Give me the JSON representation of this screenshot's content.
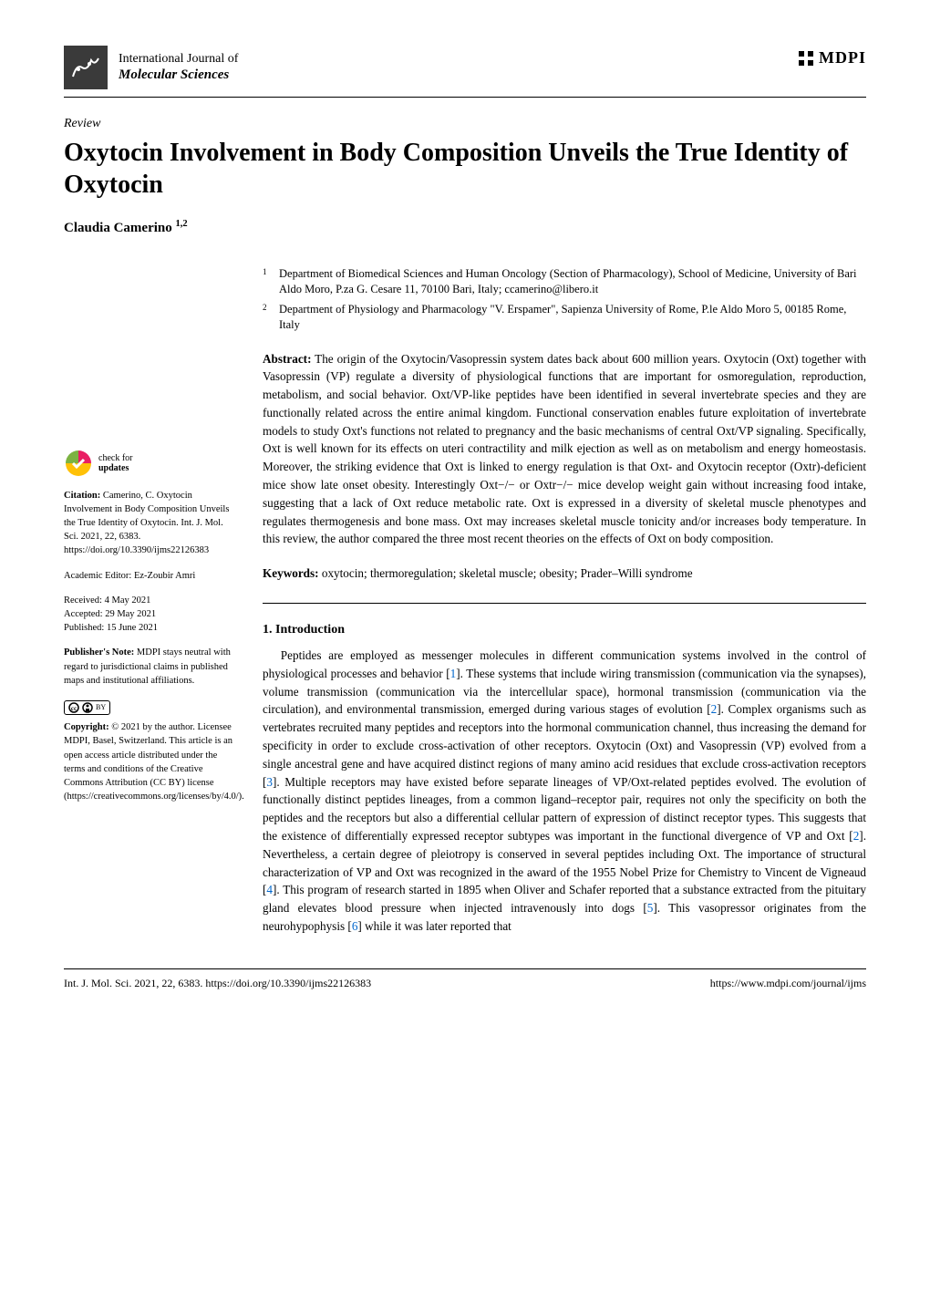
{
  "journal": {
    "line1": "International Journal of",
    "line2": "Molecular Sciences",
    "publisher_logo_text": "MDPI"
  },
  "article": {
    "type": "Review",
    "title": "Oxytocin Involvement in Body Composition Unveils the True Identity of Oxytocin",
    "author": "Claudia Camerino",
    "author_sup": "1,2"
  },
  "affiliations": [
    {
      "num": "1",
      "text": "Department of Biomedical Sciences and Human Oncology (Section of Pharmacology), School of Medicine, University of Bari Aldo Moro, P.za G. Cesare 11, 70100 Bari, Italy; ccamerino@libero.it"
    },
    {
      "num": "2",
      "text": "Department of Physiology and Pharmacology \"V. Erspamer\", Sapienza University of Rome, P.le Aldo Moro 5, 00185 Rome, Italy"
    }
  ],
  "abstract_label": "Abstract:",
  "abstract": "The origin of the Oxytocin/Vasopressin system dates back about 600 million years. Oxytocin (Oxt) together with Vasopressin (VP) regulate a diversity of physiological functions that are important for osmoregulation, reproduction, metabolism, and social behavior. Oxt/VP-like peptides have been identified in several invertebrate species and they are functionally related across the entire animal kingdom. Functional conservation enables future exploitation of invertebrate models to study Oxt's functions not related to pregnancy and the basic mechanisms of central Oxt/VP signaling. Specifically, Oxt is well known for its effects on uteri contractility and milk ejection as well as on metabolism and energy homeostasis. Moreover, the striking evidence that Oxt is linked to energy regulation is that Oxt- and Oxytocin receptor (Oxtr)-deficient mice show late onset obesity. Interestingly Oxt−/− or Oxtr−/− mice develop weight gain without increasing food intake, suggesting that a lack of Oxt reduce metabolic rate. Oxt is expressed in a diversity of skeletal muscle phenotypes and regulates thermogenesis and bone mass. Oxt may increases skeletal muscle tonicity and/or increases body temperature. In this review, the author compared the three most recent theories on the effects of Oxt on body composition.",
  "keywords_label": "Keywords:",
  "keywords": "oxytocin; thermoregulation; skeletal muscle; obesity; Prader–Willi syndrome",
  "section1_title": "1. Introduction",
  "section1_body": "Peptides are employed as messenger molecules in different communication systems involved in the control of physiological processes and behavior [1]. These systems that include wiring transmission (communication via the synapses), volume transmission (communication via the intercellular space), hormonal transmission (communication via the circulation), and environmental transmission, emerged during various stages of evolution [2]. Complex organisms such as vertebrates recruited many peptides and receptors into the hormonal communication channel, thus increasing the demand for specificity in order to exclude cross-activation of other receptors. Oxytocin (Oxt) and Vasopressin (VP) evolved from a single ancestral gene and have acquired distinct regions of many amino acid residues that exclude cross-activation receptors [3]. Multiple receptors may have existed before separate lineages of VP/Oxt-related peptides evolved. The evolution of functionally distinct peptides lineages, from a common ligand–receptor pair, requires not only the specificity on both the peptides and the receptors but also a differential cellular pattern of expression of distinct receptor types. This suggests that the existence of differentially expressed receptor subtypes was important in the functional divergence of VP and Oxt [2]. Nevertheless, a certain degree of pleiotropy is conserved in several peptides including Oxt. The importance of structural characterization of VP and Oxt was recognized in the award of the 1955 Nobel Prize for Chemistry to Vincent de Vigneaud [4]. This program of research started in 1895 when Oliver and Schafer reported that a substance extracted from the pituitary gland elevates blood pressure when injected intravenously into dogs [5]. This vasopressor originates from the neurohypophysis [6] while it was later reported that",
  "sidebar": {
    "check_updates_line1": "check for",
    "check_updates_line2": "updates",
    "citation_label": "Citation:",
    "citation_text": "Camerino, C. Oxytocin Involvement in Body Composition Unveils the True Identity of Oxytocin. Int. J. Mol. Sci. 2021, 22, 6383. https://doi.org/10.3390/ijms22126383",
    "academic_editor_label": "Academic Editor:",
    "academic_editor": "Ez-Zoubir Amri",
    "received_label": "Received:",
    "received": "4 May 2021",
    "accepted_label": "Accepted:",
    "accepted": "29 May 2021",
    "published_label": "Published:",
    "published": "15 June 2021",
    "pubnote_label": "Publisher's Note:",
    "pubnote": "MDPI stays neutral with regard to jurisdictional claims in published maps and institutional affiliations.",
    "copyright_label": "Copyright:",
    "copyright": "© 2021 by the author. Licensee MDPI, Basel, Switzerland. This article is an open access article distributed under the terms and conditions of the Creative Commons Attribution (CC BY) license (https://creativecommons.org/licenses/by/4.0/).",
    "cc_text": "CC",
    "by_text": "BY"
  },
  "footer": {
    "left": "Int. J. Mol. Sci. 2021, 22, 6383. https://doi.org/10.3390/ijms22126383",
    "right": "https://www.mdpi.com/journal/ijms"
  },
  "colors": {
    "text": "#000000",
    "link": "#0066cc",
    "bg": "#ffffff",
    "check_green": "#7cb342",
    "check_pink": "#e91e63"
  }
}
